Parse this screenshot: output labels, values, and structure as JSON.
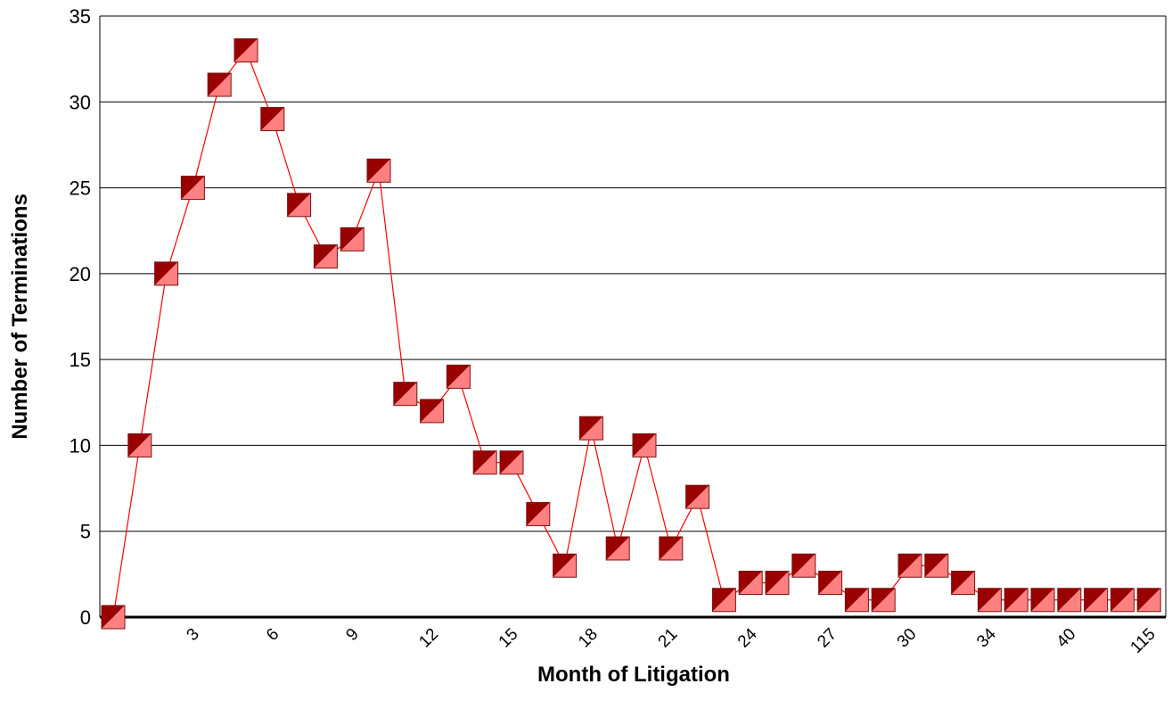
{
  "chart_data": {
    "type": "line",
    "title": "",
    "xlabel": "Month of Litigation",
    "ylabel": "Number of Terminations",
    "ylim": [
      0,
      35
    ],
    "yticks": [
      0,
      5,
      10,
      15,
      20,
      25,
      30,
      35
    ],
    "grid": "horizontal",
    "legend": "none",
    "x_tick_labels": [
      "3",
      "6",
      "9",
      "12",
      "15",
      "18",
      "21",
      "24",
      "27",
      "30",
      "34",
      "40",
      "115"
    ],
    "x_tick_label_point_index": [
      3,
      6,
      9,
      12,
      15,
      18,
      21,
      24,
      27,
      30,
      33,
      36,
      39
    ],
    "series": [
      {
        "values": [
          0,
          10,
          20,
          25,
          31,
          33,
          29,
          24,
          21,
          22,
          26,
          13,
          12,
          14,
          9,
          9,
          6,
          3,
          11,
          4,
          10,
          4,
          7,
          1,
          2,
          2,
          3,
          2,
          1,
          1,
          3,
          3,
          2,
          1,
          1,
          1,
          1,
          1,
          1,
          1
        ],
        "line_color": "#ff0000",
        "marker_dark": "#990000",
        "marker_light": "#ff8080"
      }
    ]
  }
}
